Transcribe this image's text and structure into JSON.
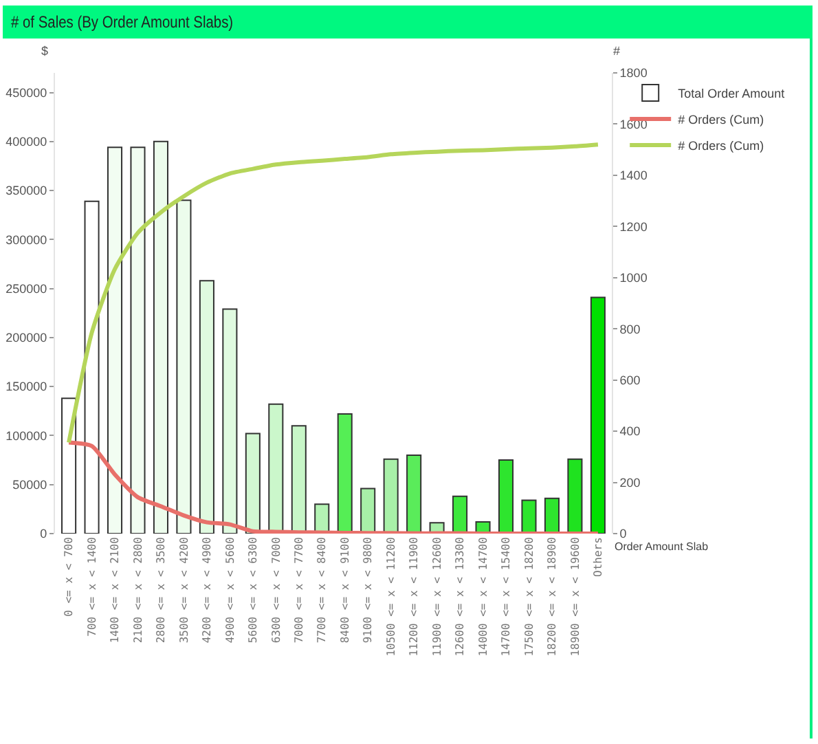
{
  "chart_data": {
    "type": "bar",
    "title": "# of Sales (By Order Amount Slabs)",
    "ylabel": "$",
    "y2label": "#",
    "xlabel": "Order Amount Slab",
    "categories": [
      "0 <= x < 700",
      "700 <= x < 1400",
      "1400 <= x < 2100",
      "2100 <= x < 2800",
      "2800 <= x < 3500",
      "3500 <= x < 4200",
      "4200 <= x < 4900",
      "4900 <= x < 5600",
      "5600 <= x < 6300",
      "6300 <= x < 7000",
      "7000 <= x < 7700",
      "7700 <= x < 8400",
      "8400 <= x < 9100",
      "9100 <= x < 9800",
      "10500 <= x < 11200",
      "11200 <= x < 11900",
      "11900 <= x < 12600",
      "12600 <= x < 13300",
      "14000 <= x < 14700",
      "14700 <= x < 15400",
      "17500 <= x < 18200",
      "18200 <= x < 18900",
      "18900 <= x < 19600",
      "Others"
    ],
    "series": [
      {
        "name": "Total Order Amount",
        "colors": [
          "#ffffff",
          "#ffffff",
          "#f2fdf2",
          "#f2fdf2",
          "#ecfcec",
          "#ecfcec",
          "#e0fae0",
          "#e0fae0",
          "#d2f8d2",
          "#cbf7cb",
          "#c8f6c8",
          "#b4f3b4",
          "#55ee55",
          "#a8f0a8",
          "#a8f0a8",
          "#5aec5a",
          "#a8f0a8",
          "#3ee83e",
          "#3ee83e",
          "#2ee52e",
          "#2ee52e",
          "#2ee52e",
          "#1fe21f",
          "#00e000"
        ],
        "values": [
          138000,
          339000,
          394000,
          394000,
          400000,
          340000,
          258000,
          229000,
          102000,
          132000,
          110000,
          30000,
          122000,
          46000,
          76000,
          80000,
          11000,
          38000,
          12000,
          75000,
          34000,
          36000,
          76000,
          241000
        ]
      },
      {
        "name": "# Orders (Cum)",
        "type": "line",
        "axis": "y2",
        "color": "#e8706a",
        "values": [
          356,
          342,
          231,
          142,
          107,
          71,
          44,
          36,
          9,
          7,
          5,
          4,
          3,
          2,
          2,
          1,
          1,
          1,
          0,
          0,
          0,
          0,
          0,
          0
        ]
      },
      {
        "name": "# Orders (Cum)",
        "type": "line",
        "axis": "y2",
        "color": "#b5d55a",
        "values": [
          356,
          785,
          1033,
          1175,
          1255,
          1318,
          1371,
          1407,
          1425,
          1442,
          1451,
          1457,
          1464,
          1471,
          1482,
          1488,
          1492,
          1496,
          1498,
          1502,
          1505,
          1508,
          1513,
          1520
        ]
      }
    ],
    "ylim": [
      0,
      470000
    ],
    "yticks": [
      0,
      50000,
      100000,
      150000,
      200000,
      250000,
      300000,
      350000,
      400000,
      450000
    ],
    "y2lim": [
      0,
      1800
    ],
    "y2ticks": [
      0,
      200,
      400,
      600,
      800,
      1000,
      1200,
      1400,
      1600,
      1800
    ],
    "grid": false,
    "legend": "top right",
    "marker": "none"
  }
}
